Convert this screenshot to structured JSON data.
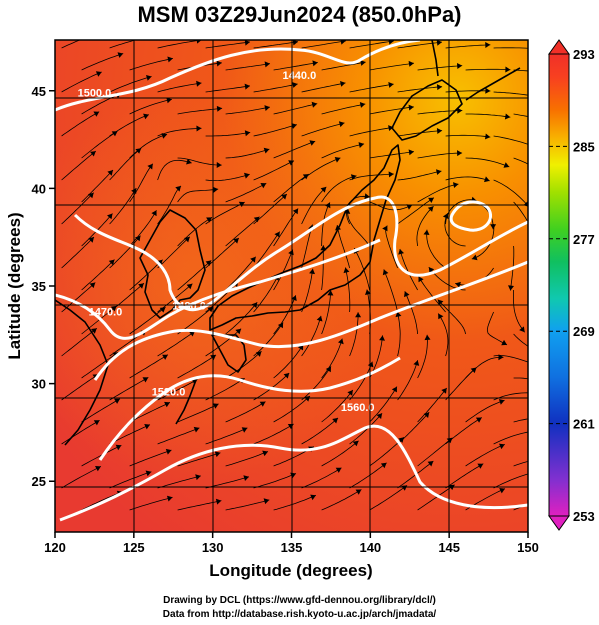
{
  "title": "MSM 03Z29Jun2024 (850.0hPa)",
  "x_axis": {
    "label": "Longitude (degrees)",
    "ticks": [
      120,
      125,
      130,
      135,
      140,
      145,
      150
    ]
  },
  "y_axis": {
    "label": "Latitude  (degrees)",
    "ticks": [
      25,
      30,
      35,
      40,
      45
    ]
  },
  "colorbar": {
    "ticks": [
      253,
      261,
      269,
      277,
      285,
      293
    ],
    "colors": [
      "#e020c0",
      "#8030d0",
      "#1030c0",
      "#1070e0",
      "#10a0f0",
      "#10c8b0",
      "#10c060",
      "#40d020",
      "#a0e000",
      "#f0f000",
      "#f8b000",
      "#f87000",
      "#f84020",
      "#f03028"
    ]
  },
  "contour_labels": [
    {
      "text": "1500.0",
      "lon": 122.5,
      "lat": 44.7
    },
    {
      "text": "1440.0",
      "lon": 135.5,
      "lat": 45.6
    },
    {
      "text": "1470.0",
      "lon": 123.2,
      "lat": 33.5
    },
    {
      "text": "1480.0",
      "lon": 128.5,
      "lat": 33.8
    },
    {
      "text": "1520.0",
      "lon": 127.2,
      "lat": 29.4
    },
    {
      "text": "1560.0",
      "lon": 139.2,
      "lat": 28.6
    }
  ],
  "credits": [
    "Drawing by DCL (https://www.gfd-dennou.org/library/dcl/)",
    "Data from http://database.rish.kyoto-u.ac.jp/arch/jmadata/"
  ]
}
